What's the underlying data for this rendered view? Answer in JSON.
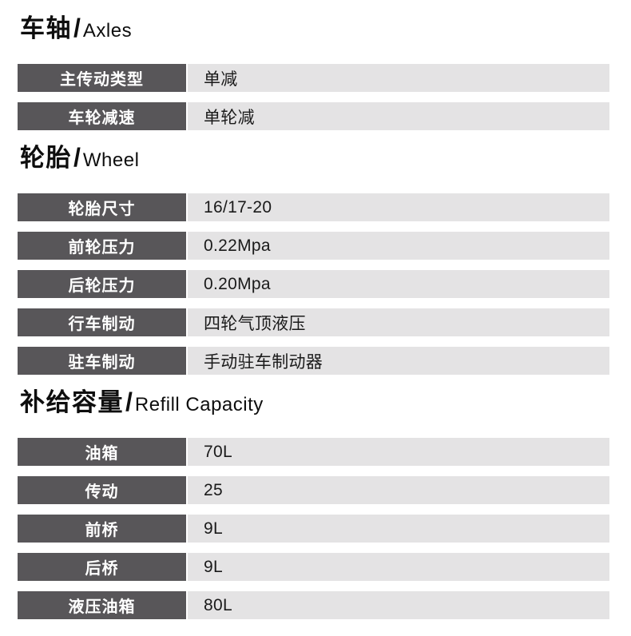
{
  "separator": "/",
  "colors": {
    "label_bg": "#585659",
    "value_bg": "#e4e3e4",
    "label_text": "#ffffff",
    "value_text": "#1a1a1a",
    "heading_text": "#0e0e0e",
    "page_bg": "#ffffff"
  },
  "sections": [
    {
      "title_zh": "车轴",
      "title_en": "Axles",
      "rows": [
        {
          "label": "主传动类型",
          "value": "单减"
        },
        {
          "label": "车轮减速",
          "value": "单轮减"
        }
      ]
    },
    {
      "title_zh": "轮胎",
      "title_en": "Wheel",
      "rows": [
        {
          "label": "轮胎尺寸",
          "value": "16/17-20"
        },
        {
          "label": "前轮压力",
          "value": "0.22Mpa"
        },
        {
          "label": "后轮压力",
          "value": "0.20Mpa"
        },
        {
          "label": "行车制动",
          "value": "四轮气顶液压"
        },
        {
          "label": "驻车制动",
          "value": "手动驻车制动器"
        }
      ]
    },
    {
      "title_zh": "补给容量",
      "title_en": "Refill Capacity",
      "rows": [
        {
          "label": "油箱",
          "value": "70L"
        },
        {
          "label": "传动",
          "value": "25"
        },
        {
          "label": "前桥",
          "value": "9L"
        },
        {
          "label": "后桥",
          "value": "9L"
        },
        {
          "label": "液压油箱",
          "value": "80L"
        }
      ]
    }
  ]
}
